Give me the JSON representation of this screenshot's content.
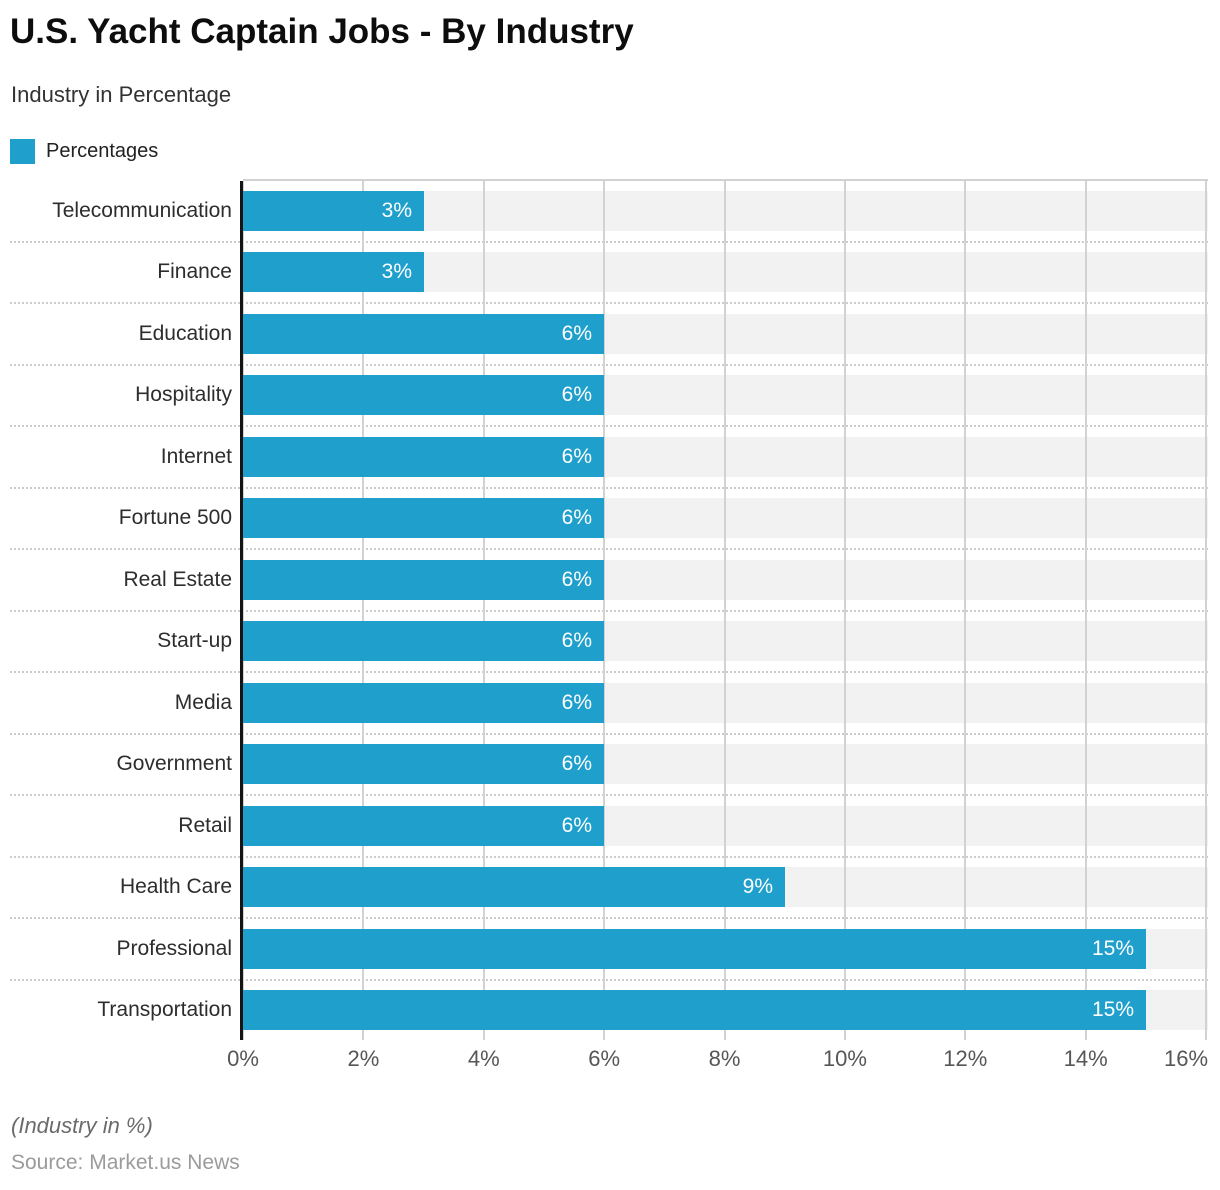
{
  "title": "U.S. Yacht Captain Jobs - By Industry",
  "subtitle": "Industry in Percentage",
  "legend": {
    "label": "Percentages"
  },
  "footer": {
    "note": "(Industry in %)",
    "source": "Source: Market.us News"
  },
  "colors": {
    "bar": "#1FA0CC",
    "row_band": "#F2F2F2",
    "gridline": "#D2D2D2",
    "dotted_separator": "#CCCCCC",
    "axis_line": "#141414",
    "value_label": "#FFFFFF",
    "tick_label": "#565656",
    "category_label": "#2D2D2D"
  },
  "chart_data": {
    "type": "bar",
    "orientation": "horizontal",
    "title": "U.S. Yacht Captain Jobs - By Industry",
    "subtitle": "Industry in Percentage",
    "series_name": "Percentages",
    "categories": [
      "Telecommunication",
      "Finance",
      "Education",
      "Hospitality",
      "Internet",
      "Fortune 500",
      "Real Estate",
      "Start-up",
      "Media",
      "Government",
      "Retail",
      "Health Care",
      "Professional",
      "Transportation"
    ],
    "values": [
      3,
      3,
      6,
      6,
      6,
      6,
      6,
      6,
      6,
      6,
      6,
      9,
      15,
      15
    ],
    "value_labels": [
      "3%",
      "3%",
      "6%",
      "6%",
      "6%",
      "6%",
      "6%",
      "6%",
      "6%",
      "6%",
      "6%",
      "9%",
      "15%",
      "15%"
    ],
    "x_ticks": [
      "0%",
      "2%",
      "4%",
      "6%",
      "8%",
      "10%",
      "12%",
      "14%",
      "16%"
    ],
    "xlim": [
      0,
      16
    ],
    "grid": "vertical solid gridlines; dotted horizontal row separators",
    "legend_position": "top-left",
    "value_label_position": "inside-end"
  }
}
